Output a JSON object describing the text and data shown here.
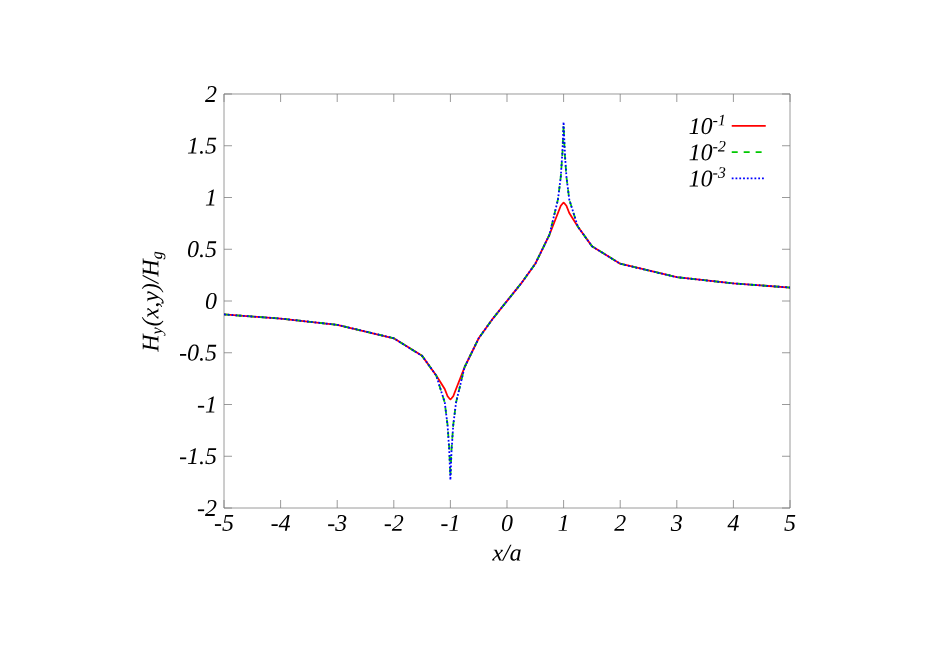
{
  "chart_data": {
    "type": "line",
    "xlabel": "x/a",
    "ylabel": "H$_{y}$(x,y)/H$_{g}$",
    "x": [
      -5,
      -4,
      -3,
      -2,
      -1.5,
      -1.25,
      -1.1,
      -1.05,
      -1.02,
      -1,
      -0.98,
      -0.95,
      -0.9,
      -0.75,
      -0.5,
      -0.25,
      0,
      0.25,
      0.5,
      0.75,
      0.9,
      0.95,
      0.98,
      1,
      1.02,
      1.05,
      1.1,
      1.25,
      1.5,
      2,
      3,
      4,
      5
    ],
    "series": [
      {
        "name": "10$^{-1}$",
        "color": "#ff0000",
        "line_style": "solid",
        "values": [
          -0.13,
          -0.17,
          -0.23,
          -0.36,
          -0.53,
          -0.72,
          -0.85,
          -0.92,
          -0.94,
          -0.95,
          -0.94,
          -0.92,
          -0.85,
          -0.64,
          -0.36,
          -0.17,
          0,
          0.17,
          0.36,
          0.64,
          0.85,
          0.92,
          0.94,
          0.95,
          0.94,
          0.92,
          0.85,
          0.72,
          0.53,
          0.36,
          0.23,
          0.17,
          0.13
        ]
      },
      {
        "name": "10$^{-2}$",
        "color": "#00c800",
        "line_style": "dashed",
        "values": [
          -0.13,
          -0.17,
          -0.23,
          -0.36,
          -0.53,
          -0.72,
          -0.98,
          -1.2,
          -1.43,
          -1.7,
          -1.43,
          -1.2,
          -0.98,
          -0.64,
          -0.36,
          -0.17,
          0,
          0.17,
          0.36,
          0.64,
          0.98,
          1.2,
          1.43,
          1.7,
          1.43,
          1.2,
          0.98,
          0.72,
          0.53,
          0.36,
          0.23,
          0.17,
          0.13
        ]
      },
      {
        "name": "10$^{-3}$",
        "color": "#0000ff",
        "line_style": "dotted",
        "values": [
          -0.13,
          -0.17,
          -0.23,
          -0.36,
          -0.53,
          -0.72,
          -0.98,
          -1.2,
          -1.45,
          -1.73,
          -1.45,
          -1.2,
          -0.98,
          -0.64,
          -0.36,
          -0.17,
          0,
          0.17,
          0.36,
          0.64,
          0.98,
          1.2,
          1.45,
          1.73,
          1.45,
          1.2,
          0.98,
          0.72,
          0.53,
          0.36,
          0.23,
          0.17,
          0.13
        ]
      }
    ],
    "xlim": [
      -5,
      5
    ],
    "ylim": [
      -2,
      2
    ],
    "xticks": [
      -5,
      -4,
      -3,
      -2,
      -1,
      0,
      1,
      2,
      3,
      4,
      5
    ],
    "yticks": [
      -2,
      -1.5,
      -1,
      -0.5,
      0,
      0.5,
      1,
      1.5,
      2
    ],
    "grid": false,
    "legend": "top right",
    "marker": "none"
  }
}
